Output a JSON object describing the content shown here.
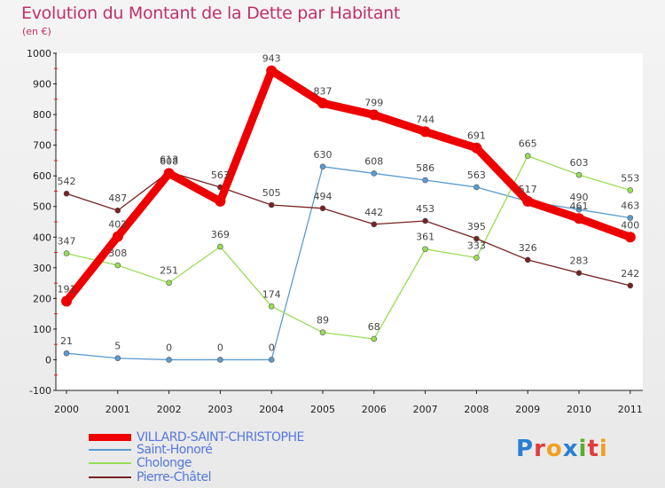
{
  "header": {
    "title": "Evolution du Montant de la Dette par Habitant",
    "unit": "(en €)"
  },
  "brand": {
    "text": "Proxiti",
    "letter_colors": [
      "#2a7fd4",
      "#e03c3c",
      "#f0a020",
      "#2a7fd4",
      "#55b030",
      "#e03c3c",
      "#f0a020"
    ]
  },
  "chart_data": {
    "type": "line",
    "x": [
      "2000",
      "2001",
      "2002",
      "2003",
      "2004",
      "2005",
      "2006",
      "2007",
      "2008",
      "2009",
      "2010",
      "2011"
    ],
    "ylim": [
      -100,
      1000
    ],
    "yticks": [
      "-100",
      "0",
      "100",
      "200",
      "300",
      "400",
      "500",
      "600",
      "700",
      "800",
      "900",
      "1000"
    ],
    "grid": false,
    "legend_position": "bottom-left",
    "series": [
      {
        "name": "VILLARD-SAINT-CHRISTOPHE",
        "color": "#ee0000",
        "values": [
          191,
          402,
          608,
          517,
          943,
          837,
          799,
          744,
          691,
          517,
          461,
          400
        ],
        "labels": [
          "191",
          "402",
          "608",
          "",
          "943",
          "837",
          "799",
          "744",
          "691",
          "517",
          "461",
          "400"
        ]
      },
      {
        "name": "Saint-Honoré",
        "color": "#5b9bd0",
        "values": [
          21,
          5,
          0,
          0,
          0,
          630,
          608,
          586,
          563,
          517,
          490,
          463
        ],
        "labels": [
          "21",
          "5",
          "0",
          "0",
          "0",
          "630",
          "608",
          "586",
          "563",
          "",
          "490",
          "463"
        ]
      },
      {
        "name": "Cholonge",
        "color": "#99dd55",
        "values": [
          347,
          308,
          251,
          369,
          174,
          89,
          68,
          361,
          333,
          665,
          603,
          553
        ],
        "labels": [
          "347",
          "308",
          "251",
          "369",
          "174",
          "89",
          "68",
          "361",
          "333",
          "665",
          "603",
          "553"
        ]
      },
      {
        "name": "Pierre-Châtel",
        "color": "#772222",
        "values": [
          542,
          487,
          613,
          563,
          505,
          494,
          442,
          453,
          395,
          326,
          283,
          242
        ],
        "labels": [
          "542",
          "487",
          "613",
          "563",
          "505",
          "494",
          "442",
          "453",
          "395",
          "326",
          "283",
          "242"
        ]
      }
    ]
  }
}
